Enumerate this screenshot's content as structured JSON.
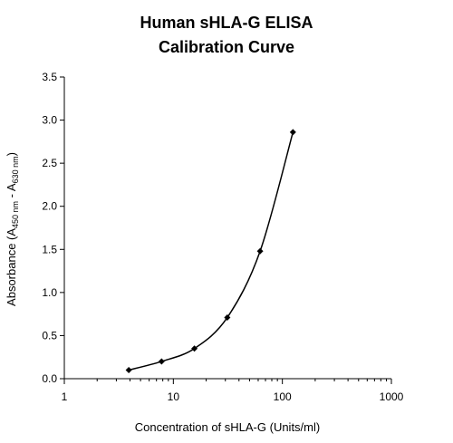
{
  "chart_data": {
    "type": "scatter",
    "title": "Human sHLA-G ELISA",
    "subtitle": "Calibration Curve",
    "xlabel": "Concentration of sHLA-G (Units/ml)",
    "ylabel": {
      "prefix": "Absorbance (A",
      "sub1": "450 nm",
      "middle": " - A",
      "sub2": "630 nm",
      "suffix": ")"
    },
    "xscale": "log",
    "xlim": [
      1,
      1000
    ],
    "ylim": [
      0,
      3.5
    ],
    "xticks": [
      1,
      10,
      100,
      1000
    ],
    "xtick_labels": [
      "1",
      "10",
      "100",
      "1000"
    ],
    "yticks": [
      0,
      0.5,
      1,
      1.5,
      2,
      2.5,
      3,
      3.5
    ],
    "ytick_labels": [
      "0.0",
      "0.5",
      "1.0",
      "1.5",
      "2.0",
      "2.5",
      "3.0",
      "3.5"
    ],
    "grid": false,
    "legend": "none",
    "series": [
      {
        "x": [
          3.9,
          7.8,
          15.6,
          31.25,
          62.5,
          125
        ],
        "y": [
          0.1,
          0.2,
          0.35,
          0.71,
          1.48,
          2.86
        ],
        "line": "smooth",
        "marker": "diamond",
        "color": "#000000"
      }
    ]
  }
}
